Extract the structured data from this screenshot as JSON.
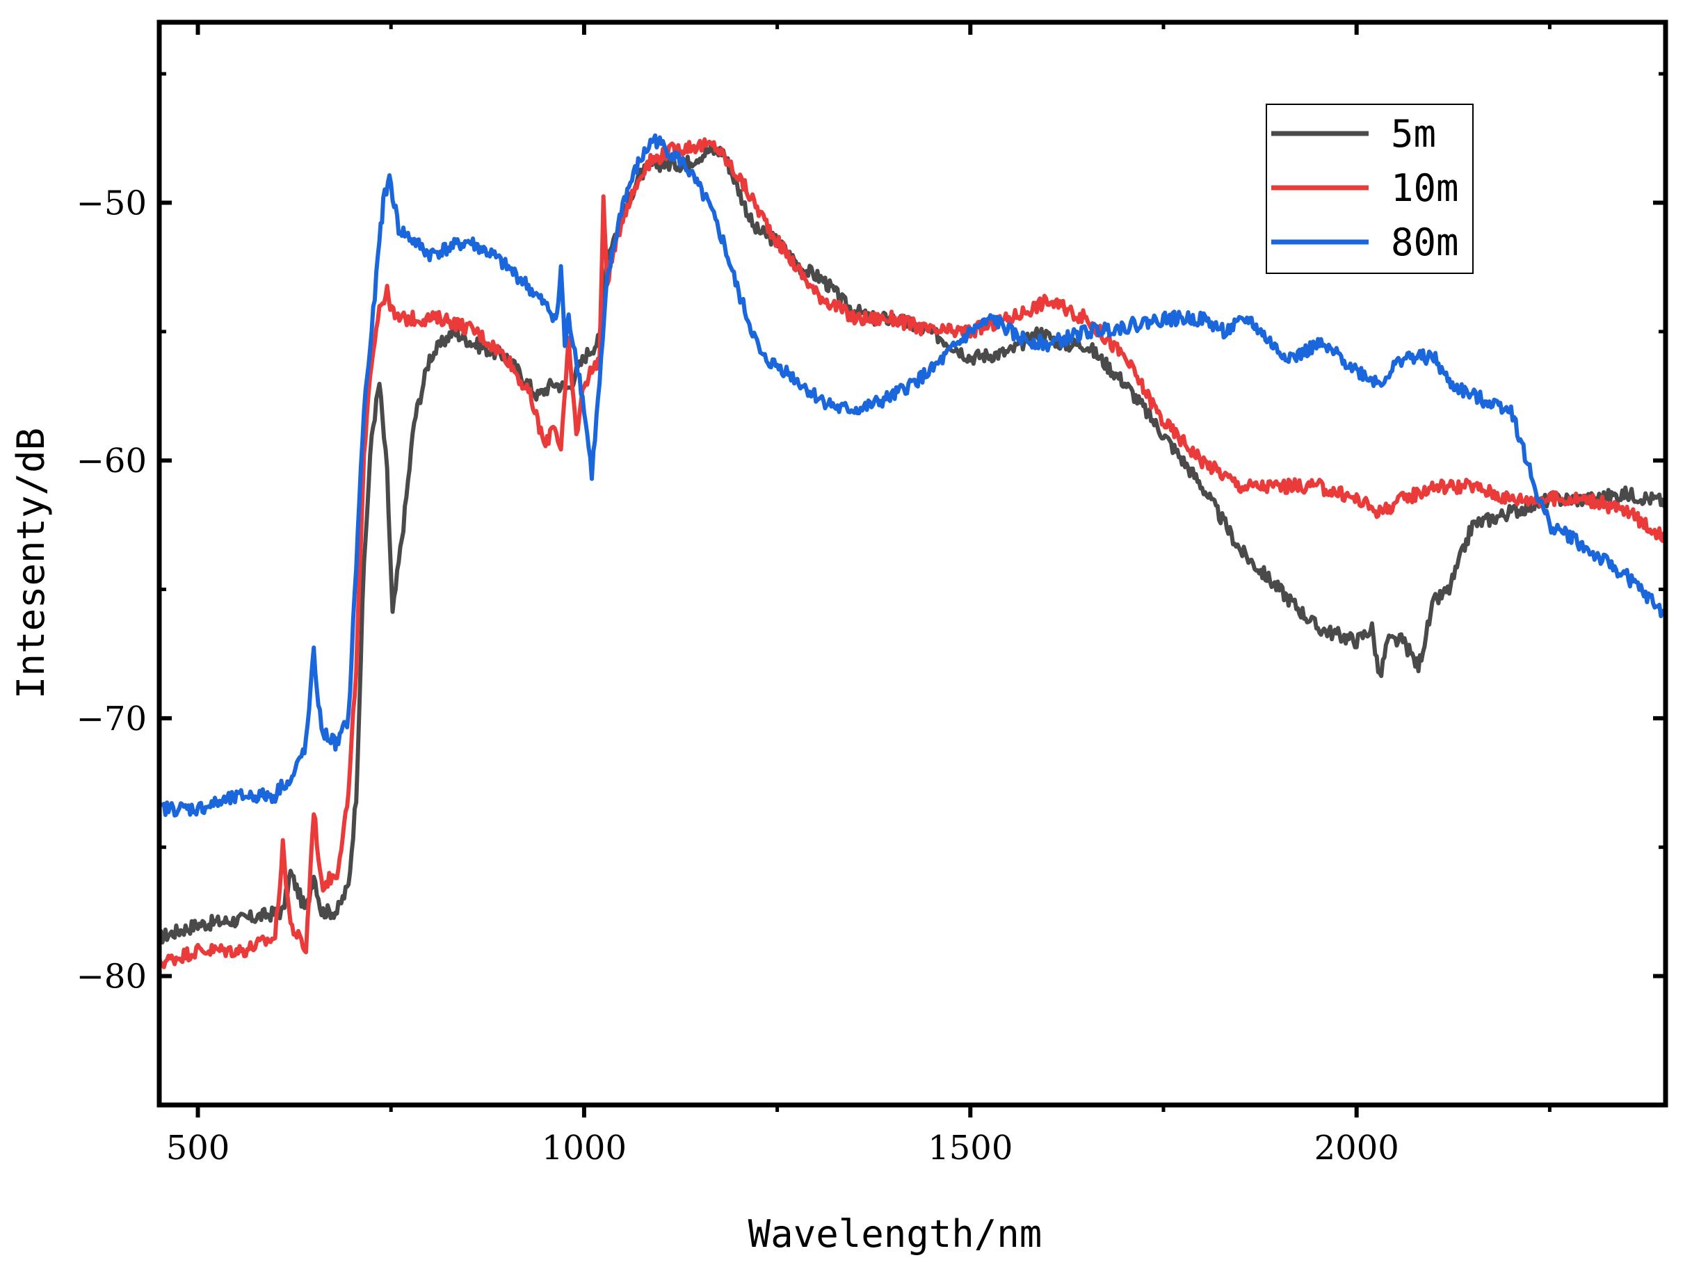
{
  "chart_data": {
    "type": "line",
    "title": "",
    "xlabel": "Wavelength/nm",
    "ylabel": "Intesenty/dB",
    "xlim": [
      450,
      2400
    ],
    "ylim": [
      -85,
      -43
    ],
    "x_ticks": [
      500,
      1000,
      1500,
      2000
    ],
    "x_tick_labels": [
      "500",
      "1000",
      "1500",
      "2000"
    ],
    "y_ticks": [
      -50,
      -60,
      -70,
      -80
    ],
    "y_tick_labels": [
      "−50",
      "−60",
      "−70",
      "−80"
    ],
    "grid": false,
    "legend_position": "top-right",
    "series": [
      {
        "name": "5m",
        "color": "#4a4a4a",
        "x": [
          450,
          500,
          560,
          610,
          620,
          640,
          650,
          660,
          680,
          695,
          705,
          715,
          725,
          735,
          745,
          752,
          758,
          768,
          780,
          800,
          830,
          860,
          900,
          940,
          960,
          980,
          1000,
          1020,
          1030,
          1050,
          1070,
          1090,
          1110,
          1130,
          1160,
          1180,
          1200,
          1220,
          1250,
          1280,
          1310,
          1340,
          1370,
          1400,
          1430,
          1460,
          1500,
          1550,
          1590,
          1620,
          1650,
          1700,
          1750,
          1800,
          1850,
          1900,
          1950,
          2000,
          2020,
          2030,
          2040,
          2060,
          2080,
          2100,
          2120,
          2150,
          2200,
          2250,
          2300,
          2350,
          2400
        ],
        "values": [
          -78.5,
          -78.0,
          -77.8,
          -77.5,
          -76.0,
          -77.5,
          -76.0,
          -77.5,
          -77.5,
          -76.5,
          -73.0,
          -64.0,
          -59.0,
          -57.0,
          -60.5,
          -66.0,
          -64.5,
          -62.0,
          -58.5,
          -56.0,
          -55.0,
          -55.5,
          -56.0,
          -57.5,
          -57.0,
          -57.2,
          -56.0,
          -55.3,
          -52.0,
          -50.5,
          -49.0,
          -48.5,
          -48.5,
          -48.5,
          -48.0,
          -48.0,
          -49.5,
          -51.0,
          -51.5,
          -52.5,
          -53.0,
          -54.0,
          -54.5,
          -54.5,
          -54.8,
          -55.2,
          -56.0,
          -55.8,
          -55.0,
          -55.5,
          -55.5,
          -57.0,
          -59.0,
          -61.0,
          -63.5,
          -65.0,
          -66.5,
          -67.0,
          -66.5,
          -68.5,
          -67.0,
          -67.0,
          -68.0,
          -65.5,
          -65.0,
          -62.5,
          -62.0,
          -61.5,
          -61.5,
          -61.3,
          -61.6
        ]
      },
      {
        "name": "10m",
        "color": "#ea3a3a",
        "x": [
          450,
          500,
          560,
          600,
          610,
          620,
          640,
          650,
          660,
          680,
          695,
          705,
          715,
          725,
          735,
          745,
          755,
          780,
          820,
          860,
          900,
          930,
          950,
          960,
          970,
          980,
          990,
          1000,
          1020,
          1025,
          1030,
          1050,
          1080,
          1110,
          1140,
          1170,
          1200,
          1250,
          1300,
          1350,
          1380,
          1400,
          1450,
          1500,
          1550,
          1600,
          1650,
          1700,
          1750,
          1800,
          1850,
          1900,
          1950,
          2000,
          2030,
          2060,
          2100,
          2150,
          2200,
          2250,
          2300,
          2350,
          2400
        ],
        "values": [
          -79.5,
          -79.0,
          -79.0,
          -78.5,
          -75.0,
          -78.0,
          -79.0,
          -73.5,
          -76.5,
          -76.0,
          -73.0,
          -68.0,
          -60.0,
          -56.0,
          -54.0,
          -53.5,
          -54.5,
          -54.5,
          -54.5,
          -55.0,
          -56.0,
          -57.5,
          -59.5,
          -58.5,
          -59.5,
          -55.5,
          -59.0,
          -57.0,
          -56.0,
          -50.0,
          -53.0,
          -50.5,
          -48.5,
          -48.0,
          -47.8,
          -47.8,
          -49.0,
          -51.5,
          -53.5,
          -54.5,
          -54.5,
          -54.5,
          -55.0,
          -55.0,
          -54.5,
          -53.8,
          -54.5,
          -56.0,
          -58.5,
          -60.0,
          -61.0,
          -61.0,
          -61.0,
          -61.5,
          -62.0,
          -61.5,
          -61.0,
          -61.0,
          -61.5,
          -61.5,
          -61.5,
          -62.0,
          -63.0
        ]
      },
      {
        "name": "80m",
        "color": "#1a66dd",
        "x": [
          450,
          500,
          560,
          600,
          610,
          620,
          640,
          650,
          660,
          680,
          695,
          705,
          715,
          725,
          735,
          740,
          748,
          760,
          800,
          850,
          880,
          920,
          950,
          965,
          970,
          975,
          980,
          990,
          1000,
          1010,
          1020,
          1030,
          1050,
          1070,
          1090,
          1110,
          1130,
          1160,
          1180,
          1200,
          1230,
          1260,
          1300,
          1330,
          1360,
          1400,
          1450,
          1500,
          1530,
          1560,
          1600,
          1650,
          1700,
          1750,
          1800,
          1830,
          1860,
          1900,
          1920,
          1950,
          1980,
          2000,
          2030,
          2060,
          2100,
          2120,
          2150,
          2200,
          2230,
          2250,
          2280,
          2300,
          2350,
          2400
        ],
        "values": [
          -73.5,
          -73.5,
          -73.0,
          -73.0,
          -72.5,
          -72.5,
          -71.0,
          -67.5,
          -70.5,
          -71.0,
          -70.0,
          -64.0,
          -58.0,
          -55.0,
          -51.5,
          -50.0,
          -49.0,
          -51.0,
          -52.0,
          -51.5,
          -52.0,
          -53.0,
          -54.0,
          -54.5,
          -52.5,
          -55.5,
          -54.5,
          -56.0,
          -58.0,
          -60.5,
          -57.0,
          -53.0,
          -50.0,
          -48.5,
          -47.5,
          -48.0,
          -48.5,
          -50.0,
          -51.5,
          -53.5,
          -56.0,
          -56.5,
          -57.5,
          -58.0,
          -58.0,
          -57.5,
          -56.5,
          -55.0,
          -54.5,
          -55.2,
          -55.5,
          -55.0,
          -54.8,
          -54.5,
          -54.5,
          -55.0,
          -54.5,
          -55.8,
          -56.0,
          -55.5,
          -56.0,
          -56.5,
          -57.0,
          -56.0,
          -56.0,
          -57.0,
          -57.5,
          -58.0,
          -61.0,
          -62.5,
          -63.0,
          -63.5,
          -64.5,
          -66.0
        ]
      }
    ]
  }
}
